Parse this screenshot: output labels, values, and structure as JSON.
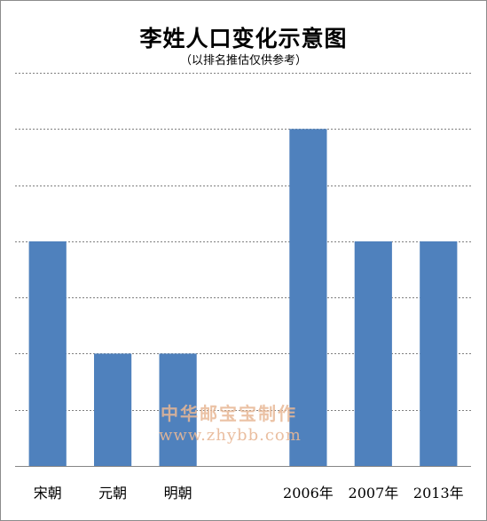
{
  "chart_data": {
    "type": "bar",
    "title": "李姓人口变化示意图",
    "subtitle": "（以排名推估仅供参考）",
    "categories": [
      "宋朝",
      "元朝",
      "明朝",
      "",
      "2006年",
      "2007年",
      "2013年"
    ],
    "values": [
      4,
      2,
      2,
      null,
      6,
      4,
      4
    ],
    "ylim": [
      0,
      7
    ],
    "grid": true,
    "grid_style": "dashed",
    "xlabel": "",
    "ylabel": "",
    "bar_color": "#4f81bd"
  },
  "watermark": {
    "line1": "中华邮宝宝制作",
    "line2": "www.zhybb.com"
  }
}
